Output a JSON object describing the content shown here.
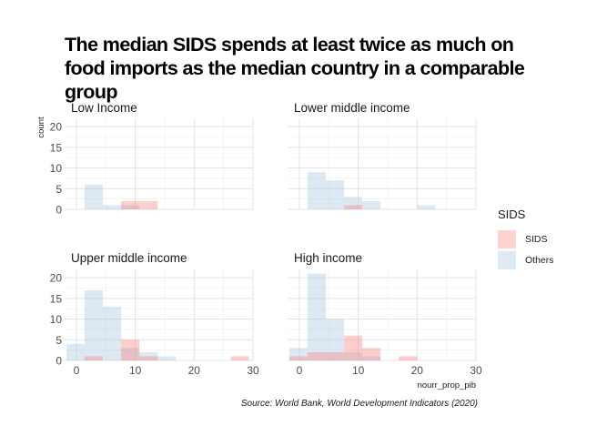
{
  "title": {
    "line1": "The median SIDS spends at least twice as much on",
    "line2": "food imports as the median country in a comparable group"
  },
  "caption": "Source: World Bank, World Development Indicators (2020)",
  "legend": {
    "title": "SIDS",
    "items": [
      {
        "label": "SIDS",
        "color": "#F8766D"
      },
      {
        "label": "Others",
        "color": "#9BBFDE"
      }
    ]
  },
  "chart_data": {
    "type": "histogram",
    "xlabel": "nourr_prop_pib",
    "ylabel": "count",
    "xlim": [
      -2,
      30
    ],
    "ylim": [
      0,
      22
    ],
    "x_ticks": [
      0,
      10,
      20,
      30
    ],
    "y_ticks": [
      0,
      5,
      10,
      15,
      20
    ],
    "x_ticks_shown_on": [
      "Upper middle income",
      "High income"
    ],
    "y_ticks_shown_on": [
      "Low Income",
      "Upper middle income"
    ],
    "grid": true,
    "legend_position": "right",
    "bin_width": 3.1,
    "series_names": [
      "SIDS",
      "Others"
    ],
    "panels": [
      {
        "name": "Low Income",
        "series": [
          {
            "name": "Others",
            "bins": [
              {
                "x0": 1.4,
                "x1": 4.5,
                "count": 6
              },
              {
                "x0": 4.5,
                "x1": 7.6,
                "count": 1
              },
              {
                "x0": 7.6,
                "x1": 10.7,
                "count": 1
              }
            ]
          },
          {
            "name": "SIDS",
            "bins": [
              {
                "x0": 7.6,
                "x1": 10.7,
                "count": 2
              },
              {
                "x0": 10.7,
                "x1": 13.8,
                "count": 2
              }
            ]
          }
        ]
      },
      {
        "name": "Lower middle income",
        "series": [
          {
            "name": "Others",
            "bins": [
              {
                "x0": 1.4,
                "x1": 4.5,
                "count": 9
              },
              {
                "x0": 4.5,
                "x1": 7.6,
                "count": 7
              },
              {
                "x0": 7.6,
                "x1": 10.7,
                "count": 3
              },
              {
                "x0": 10.7,
                "x1": 13.8,
                "count": 2
              },
              {
                "x0": 20.0,
                "x1": 23.1,
                "count": 1
              }
            ]
          },
          {
            "name": "SIDS",
            "bins": [
              {
                "x0": 7.6,
                "x1": 10.7,
                "count": 1
              }
            ]
          }
        ]
      },
      {
        "name": "Upper middle income",
        "series": [
          {
            "name": "Others",
            "bins": [
              {
                "x0": -1.7,
                "x1": 1.4,
                "count": 4
              },
              {
                "x0": 1.4,
                "x1": 4.5,
                "count": 17
              },
              {
                "x0": 4.5,
                "x1": 7.6,
                "count": 13
              },
              {
                "x0": 7.6,
                "x1": 10.7,
                "count": 3
              },
              {
                "x0": 10.7,
                "x1": 13.8,
                "count": 2
              },
              {
                "x0": 13.8,
                "x1": 16.9,
                "count": 1
              }
            ]
          },
          {
            "name": "SIDS",
            "bins": [
              {
                "x0": 1.4,
                "x1": 4.5,
                "count": 1
              },
              {
                "x0": 7.6,
                "x1": 10.7,
                "count": 5
              },
              {
                "x0": 10.7,
                "x1": 13.8,
                "count": 1
              },
              {
                "x0": 26.2,
                "x1": 29.3,
                "count": 1
              }
            ]
          }
        ]
      },
      {
        "name": "High income",
        "series": [
          {
            "name": "Others",
            "bins": [
              {
                "x0": -1.7,
                "x1": 1.4,
                "count": 3
              },
              {
                "x0": 1.4,
                "x1": 4.5,
                "count": 21
              },
              {
                "x0": 4.5,
                "x1": 7.6,
                "count": 10
              },
              {
                "x0": 7.6,
                "x1": 10.7,
                "count": 2
              },
              {
                "x0": 10.7,
                "x1": 13.8,
                "count": 1
              }
            ]
          },
          {
            "name": "SIDS",
            "bins": [
              {
                "x0": -1.7,
                "x1": 1.4,
                "count": 1
              },
              {
                "x0": 1.4,
                "x1": 4.5,
                "count": 2
              },
              {
                "x0": 4.5,
                "x1": 7.6,
                "count": 2
              },
              {
                "x0": 7.6,
                "x1": 10.7,
                "count": 6
              },
              {
                "x0": 10.7,
                "x1": 13.8,
                "count": 3
              },
              {
                "x0": 16.9,
                "x1": 20.0,
                "count": 1
              }
            ]
          }
        ]
      }
    ]
  }
}
